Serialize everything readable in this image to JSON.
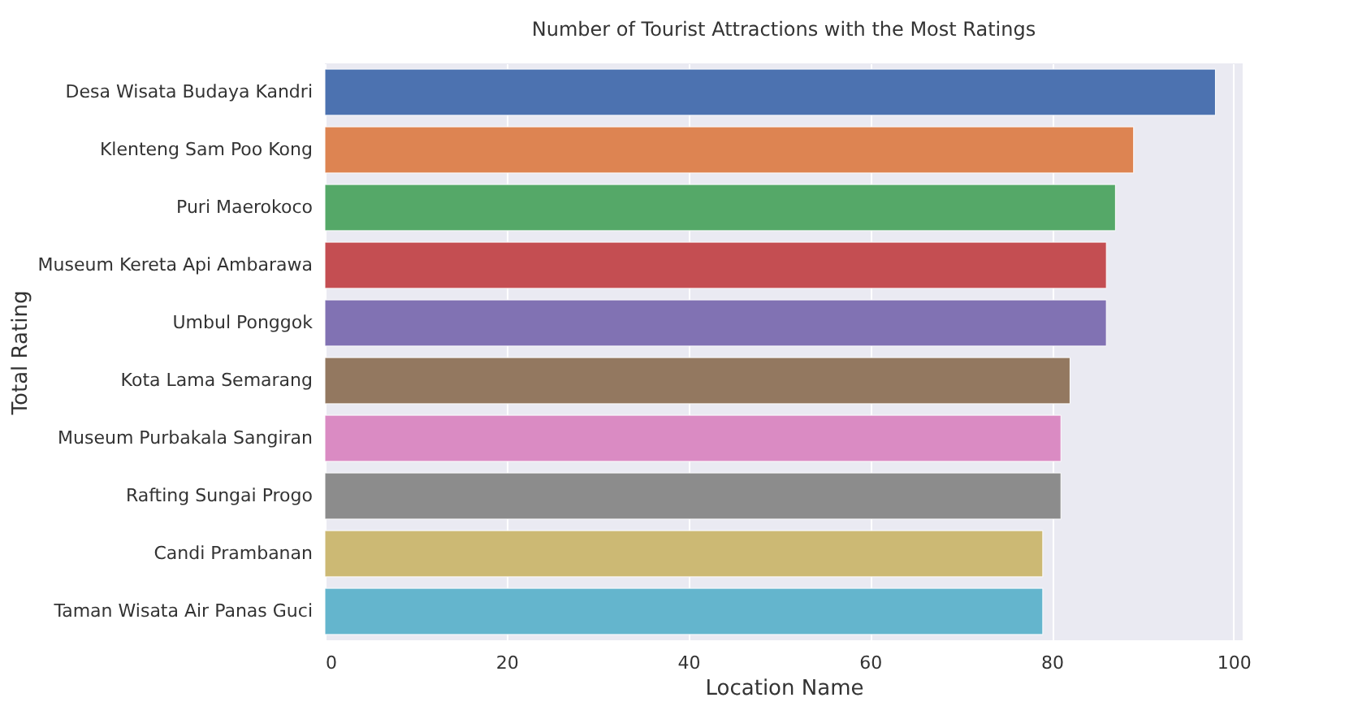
{
  "chart_data": {
    "type": "bar",
    "orientation": "horizontal",
    "title": "Number of Tourist Attractions with the Most Ratings",
    "xlabel": "Location Name",
    "ylabel": "Total Rating",
    "categories": [
      "Desa Wisata Budaya Kandri",
      "Klenteng Sam Poo Kong",
      "Puri Maerokoco",
      "Museum Kereta Api Ambarawa",
      "Umbul Ponggok",
      "Kota Lama Semarang",
      "Museum Purbakala Sangiran",
      "Rafting Sungai Progo",
      "Candi Prambanan",
      "Taman Wisata Air Panas Guci"
    ],
    "values": [
      98,
      89,
      87,
      86,
      86,
      82,
      81,
      81,
      79,
      79
    ],
    "colors": [
      "#4c72b0",
      "#dd8452",
      "#55a868",
      "#c44e52",
      "#8172b3",
      "#937860",
      "#da8bc3",
      "#8c8c8c",
      "#ccb974",
      "#64b5cd"
    ],
    "xlim": [
      0,
      101
    ],
    "xticks": [
      0,
      20,
      40,
      60,
      80,
      100
    ],
    "grid": "x"
  }
}
